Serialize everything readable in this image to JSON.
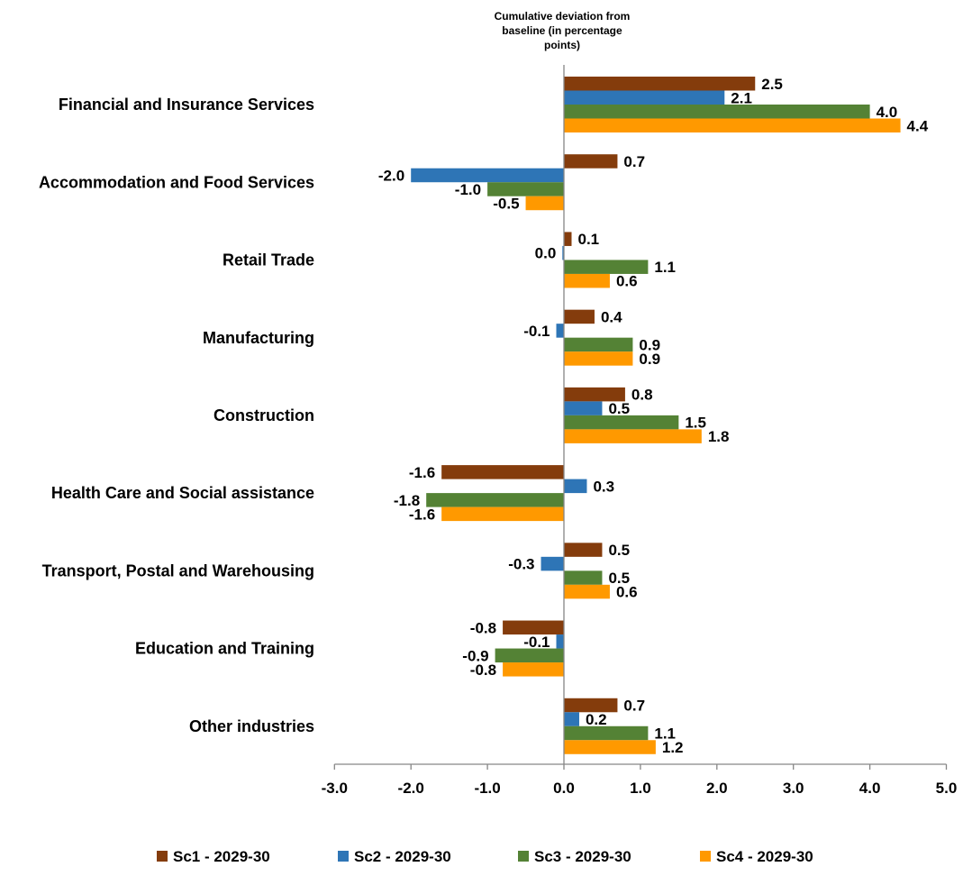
{
  "chart_data": {
    "type": "bar",
    "orientation": "horizontal",
    "title": "Cumulative deviation from baseline (in percentage points)",
    "title_lines": [
      "Cumulative deviation from",
      "baseline (in percentage",
      "points)"
    ],
    "categories": [
      "Financial and Insurance Services",
      "Accommodation and Food Services",
      "Retail Trade",
      "Manufacturing",
      "Construction",
      "Health Care and Social assistance",
      "Transport, Postal and Warehousing",
      "Education and Training",
      "Other industries"
    ],
    "series": [
      {
        "name": "Sc1 - 2029-30",
        "color": "#843C0C",
        "values": [
          2.5,
          0.7,
          0.1,
          0.4,
          0.8,
          -1.6,
          0.5,
          -0.8,
          0.7
        ],
        "labels": [
          "2.5",
          "0.7",
          "0.1",
          "0.4",
          "0.8",
          "-1.6",
          "0.5",
          "-0.8",
          "0.7"
        ]
      },
      {
        "name": "Sc2 - 2029-30",
        "color": "#2E75B6",
        "values": [
          2.1,
          -2.0,
          -0.02,
          -0.1,
          0.5,
          0.3,
          -0.3,
          -0.1,
          0.2
        ],
        "labels": [
          "2.1",
          "-2.0",
          "0.0",
          "-0.1",
          "0.5",
          "0.3",
          "-0.3",
          "-0.1",
          "0.2"
        ]
      },
      {
        "name": "Sc3 - 2029-30",
        "color": "#548235",
        "values": [
          4.0,
          -1.0,
          1.1,
          0.9,
          1.5,
          -1.8,
          0.5,
          -0.9,
          1.1
        ],
        "labels": [
          "4.0",
          "-1.0",
          "1.1",
          "0.9",
          "1.5",
          "-1.8",
          "0.5",
          "-0.9",
          "1.1"
        ]
      },
      {
        "name": "Sc4 - 2029-30",
        "color": "#FF9900",
        "values": [
          4.4,
          -0.5,
          0.6,
          0.9,
          1.8,
          -1.6,
          0.6,
          -0.8,
          1.2
        ],
        "labels": [
          "4.4",
          "-0.5",
          "0.6",
          "0.9",
          "1.8",
          "-1.6",
          "0.6",
          "-0.8",
          "1.2"
        ]
      }
    ],
    "xlim": [
      -3.0,
      5.0
    ],
    "xticks": [
      -3.0,
      -2.0,
      -1.0,
      0.0,
      1.0,
      2.0,
      3.0,
      4.0,
      5.0
    ],
    "xtick_labels": [
      "-3.0",
      "-2.0",
      "-1.0",
      "0.0",
      "1.0",
      "2.0",
      "3.0",
      "4.0",
      "5.0"
    ],
    "xlabel": "",
    "ylabel": "",
    "grid": false,
    "legend_position": "bottom"
  }
}
